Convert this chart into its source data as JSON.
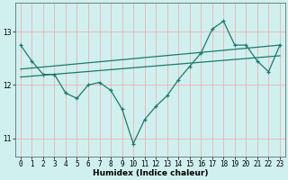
{
  "xlabel": "Humidex (Indice chaleur)",
  "ylabel": "",
  "bg_color": "#cff0ee",
  "grid_color": "#f0b0b0",
  "line_color": "#1a7a6e",
  "xlim": [
    -0.5,
    23.5
  ],
  "ylim": [
    10.65,
    13.55
  ],
  "yticks": [
    11,
    12,
    13
  ],
  "xticks": [
    0,
    1,
    2,
    3,
    4,
    5,
    6,
    7,
    8,
    9,
    10,
    11,
    12,
    13,
    14,
    15,
    16,
    17,
    18,
    19,
    20,
    21,
    22,
    23
  ],
  "main_x": [
    0,
    1,
    2,
    3,
    4,
    5,
    6,
    7,
    8,
    9,
    10,
    11,
    12,
    13,
    14,
    15,
    16,
    17,
    18,
    19,
    20,
    21,
    22,
    23
  ],
  "main_y": [
    12.75,
    12.45,
    12.2,
    12.2,
    11.85,
    11.75,
    12.0,
    12.05,
    11.9,
    11.55,
    10.9,
    11.35,
    11.6,
    11.8,
    12.1,
    12.35,
    12.6,
    13.05,
    13.2,
    12.75,
    12.75,
    12.45,
    12.25,
    12.75
  ],
  "line2_x": [
    0,
    23
  ],
  "line2_y": [
    12.3,
    12.75
  ],
  "line3_x": [
    0,
    23
  ],
  "line3_y": [
    12.15,
    12.55
  ]
}
